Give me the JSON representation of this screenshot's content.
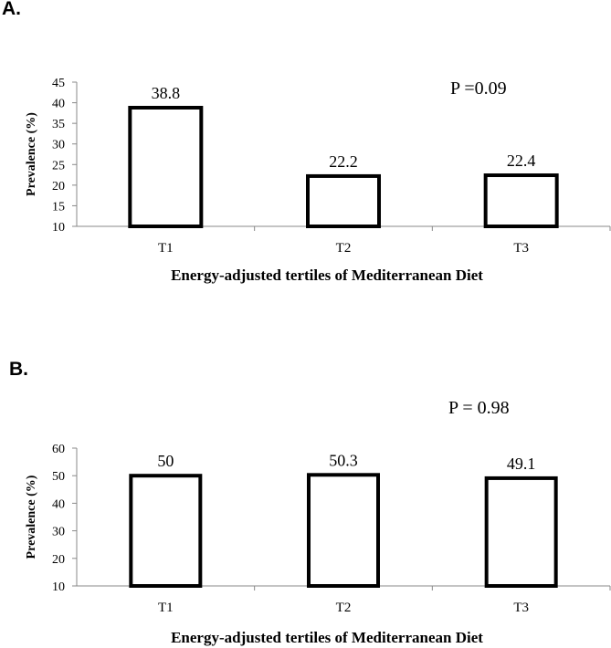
{
  "chart_data": [
    {
      "panel": "A.",
      "type": "bar",
      "categories": [
        "T1",
        "T2",
        "T3"
      ],
      "values": [
        38.8,
        22.2,
        22.4
      ],
      "value_labels": [
        "38.8",
        "22.2",
        "22.4"
      ],
      "annotation": "P =0.09",
      "xlabel": "Energy-adjusted tertiles of Mediterranean Diet",
      "ylabel": "Prevalence (%)",
      "ylim": [
        10,
        45
      ],
      "yticks": [
        10,
        15,
        20,
        25,
        30,
        35,
        40,
        45
      ],
      "grid": false
    },
    {
      "panel": "B.",
      "type": "bar",
      "categories": [
        "T1",
        "T2",
        "T3"
      ],
      "values": [
        50,
        50.3,
        49.1
      ],
      "value_labels": [
        "50",
        "50.3",
        "49.1"
      ],
      "annotation": "P = 0.98",
      "xlabel": "Energy-adjusted tertiles of Mediterranean Diet",
      "ylabel": "Prevalence (%)",
      "ylim": [
        10,
        60
      ],
      "yticks": [
        10,
        20,
        30,
        40,
        50,
        60
      ],
      "grid": false
    }
  ]
}
